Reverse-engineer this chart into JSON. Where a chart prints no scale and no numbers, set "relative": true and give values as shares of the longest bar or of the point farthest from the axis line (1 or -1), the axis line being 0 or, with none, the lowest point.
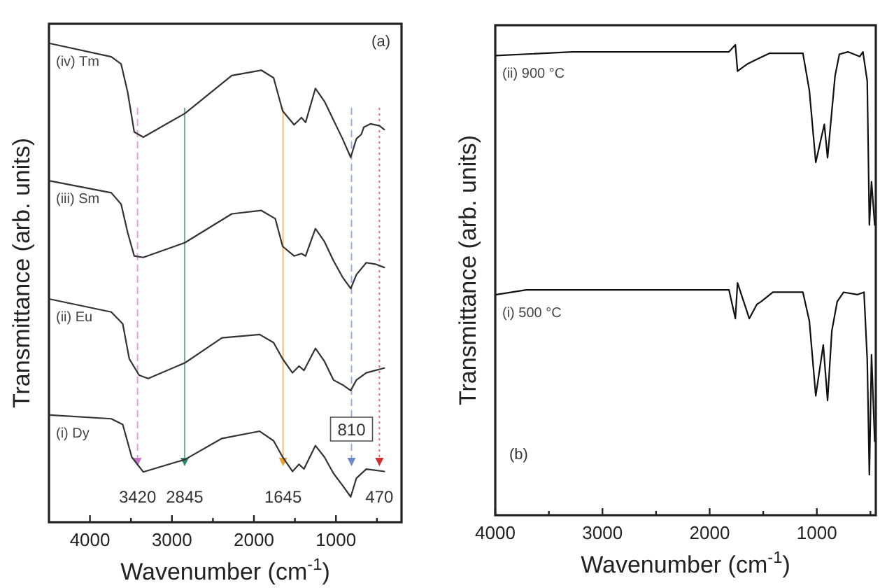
{
  "chart_data": [
    {
      "type": "line",
      "relative": true,
      "xlabel": "Wavenumber (cm$^{-1}$)",
      "ylabel": "Transmittance (arb. units)",
      "xlim": [
        4500,
        200
      ],
      "xticks": [
        4000,
        {
          "value": 3500,
          "label": null
        },
        3000,
        {
          "value": 2500,
          "label": null
        },
        2000,
        {
          "value": 1500,
          "label": null
        },
        1000,
        {
          "value": 500,
          "label": null
        }
      ],
      "tick_labels": "x",
      "grid": false,
      "line_style": "solid",
      "series": [
        {
          "name": "(iv) Tm",
          "color": "#333333",
          "x": [
            4490,
            3740,
            3620,
            3540,
            3460,
            3350,
            2840,
            2270,
            1910,
            1760,
            1650,
            1510,
            1420,
            1370,
            1250,
            1140,
            1030,
            920,
            820,
            750,
            690,
            660,
            580,
            470,
            410
          ],
          "values": [
            1.0,
            0.972,
            0.957,
            0.898,
            0.815,
            0.804,
            0.854,
            0.933,
            0.944,
            0.928,
            0.859,
            0.83,
            0.845,
            0.835,
            0.906,
            0.879,
            0.84,
            0.801,
            0.762,
            0.801,
            0.81,
            0.825,
            0.832,
            0.828,
            0.82
          ]
        },
        {
          "name": "(iii) Sm",
          "color": "#333333",
          "x": [
            4490,
            3740,
            3620,
            3540,
            3460,
            3350,
            2840,
            2270,
            1910,
            1740,
            1650,
            1510,
            1420,
            1370,
            1250,
            1140,
            1030,
            920,
            820,
            750,
            630,
            520,
            410
          ],
          "values": [
            0.713,
            0.688,
            0.664,
            0.605,
            0.556,
            0.553,
            0.584,
            0.644,
            0.651,
            0.634,
            0.576,
            0.556,
            0.561,
            0.556,
            0.613,
            0.586,
            0.546,
            0.512,
            0.488,
            0.517,
            0.542,
            0.539,
            0.532
          ]
        },
        {
          "name": "(ii) Eu",
          "color": "#333333",
          "x": [
            4490,
            3740,
            3600,
            3520,
            3400,
            3290,
            2840,
            2390,
            1930,
            1760,
            1650,
            1530,
            1450,
            1390,
            1250,
            1140,
            1030,
            920,
            820,
            750,
            630,
            410
          ],
          "values": [
            0.466,
            0.439,
            0.414,
            0.341,
            0.307,
            0.3,
            0.333,
            0.385,
            0.392,
            0.375,
            0.341,
            0.312,
            0.326,
            0.317,
            0.363,
            0.336,
            0.297,
            0.287,
            0.275,
            0.297,
            0.312,
            0.322
          ]
        },
        {
          "name": "(i) Dy",
          "color": "#333333",
          "x": [
            4490,
            3740,
            3600,
            3490,
            3350,
            2840,
            2390,
            1930,
            1760,
            1650,
            1530,
            1450,
            1390,
            1250,
            1140,
            1030,
            920,
            820,
            750,
            630,
            410
          ],
          "values": [
            0.224,
            0.216,
            0.204,
            0.136,
            0.105,
            0.131,
            0.175,
            0.19,
            0.17,
            0.136,
            0.106,
            0.121,
            0.111,
            0.16,
            0.136,
            0.102,
            0.077,
            0.053,
            0.092,
            0.111,
            0.106
          ]
        }
      ],
      "ref_lines": [
        {
          "axis": "x",
          "value": 3420,
          "label": "3420",
          "color": "#c878c8",
          "line_style": "dashed"
        },
        {
          "axis": "x",
          "value": 2845,
          "label": "2845",
          "color": "#2e8b70",
          "line_style": "solid"
        },
        {
          "axis": "x",
          "value": 1645,
          "label": "1645",
          "color": "#f0a030",
          "line_style": "solid"
        },
        {
          "axis": "x",
          "value": 810,
          "label": "810",
          "color": "#7088c8",
          "line_style": "dashed"
        },
        {
          "axis": "x",
          "value": 470,
          "label": "470",
          "color": "#d03030",
          "line_style": "dotted"
        }
      ],
      "annotations": [
        "(a)"
      ]
    },
    {
      "type": "line",
      "relative": true,
      "xlabel": "Wavenumber (cm$^{-1}$)",
      "ylabel": "Transmittance (arb. units)",
      "xlim": [
        4000,
        450
      ],
      "xticks": [
        4000,
        {
          "value": 3500,
          "label": null
        },
        3000,
        {
          "value": 2500,
          "label": null
        },
        2000,
        {
          "value": 1500,
          "label": null
        },
        1000,
        {
          "value": 500,
          "label": null
        }
      ],
      "tick_labels": "x",
      "grid": false,
      "line_style": "solid",
      "series": [
        {
          "name": "(ii) 900 °C",
          "color": "#111111",
          "x": [
            3990,
            3280,
            2420,
            1820,
            1760,
            1740,
            1650,
            1560,
            1440,
            1130,
            1070,
            1010,
            960,
            930,
            900,
            830,
            790,
            710,
            600,
            570,
            530,
            510,
            490,
            460
          ],
          "values": [
            0.977,
            0.985,
            0.985,
            0.985,
            1.0,
            0.944,
            0.959,
            0.969,
            0.982,
            0.982,
            0.903,
            0.75,
            0.801,
            0.831,
            0.76,
            0.934,
            0.98,
            0.985,
            0.975,
            0.985,
            0.923,
            0.617,
            0.709,
            0.617
          ]
        },
        {
          "name": "(i) 500 °C",
          "color": "#111111",
          "x": [
            3990,
            3710,
            2420,
            1820,
            1760,
            1740,
            1630,
            1560,
            1520,
            1410,
            1130,
            1070,
            1010,
            940,
            900,
            860,
            810,
            750,
            620,
            560,
            530,
            510,
            490,
            460
          ],
          "values": [
            0.469,
            0.479,
            0.479,
            0.479,
            0.418,
            0.494,
            0.418,
            0.448,
            0.454,
            0.474,
            0.474,
            0.413,
            0.254,
            0.362,
            0.244,
            0.392,
            0.454,
            0.474,
            0.469,
            0.474,
            0.331,
            0.086,
            0.341,
            0.157
          ]
        }
      ],
      "annotations": [
        "(b)"
      ]
    }
  ]
}
